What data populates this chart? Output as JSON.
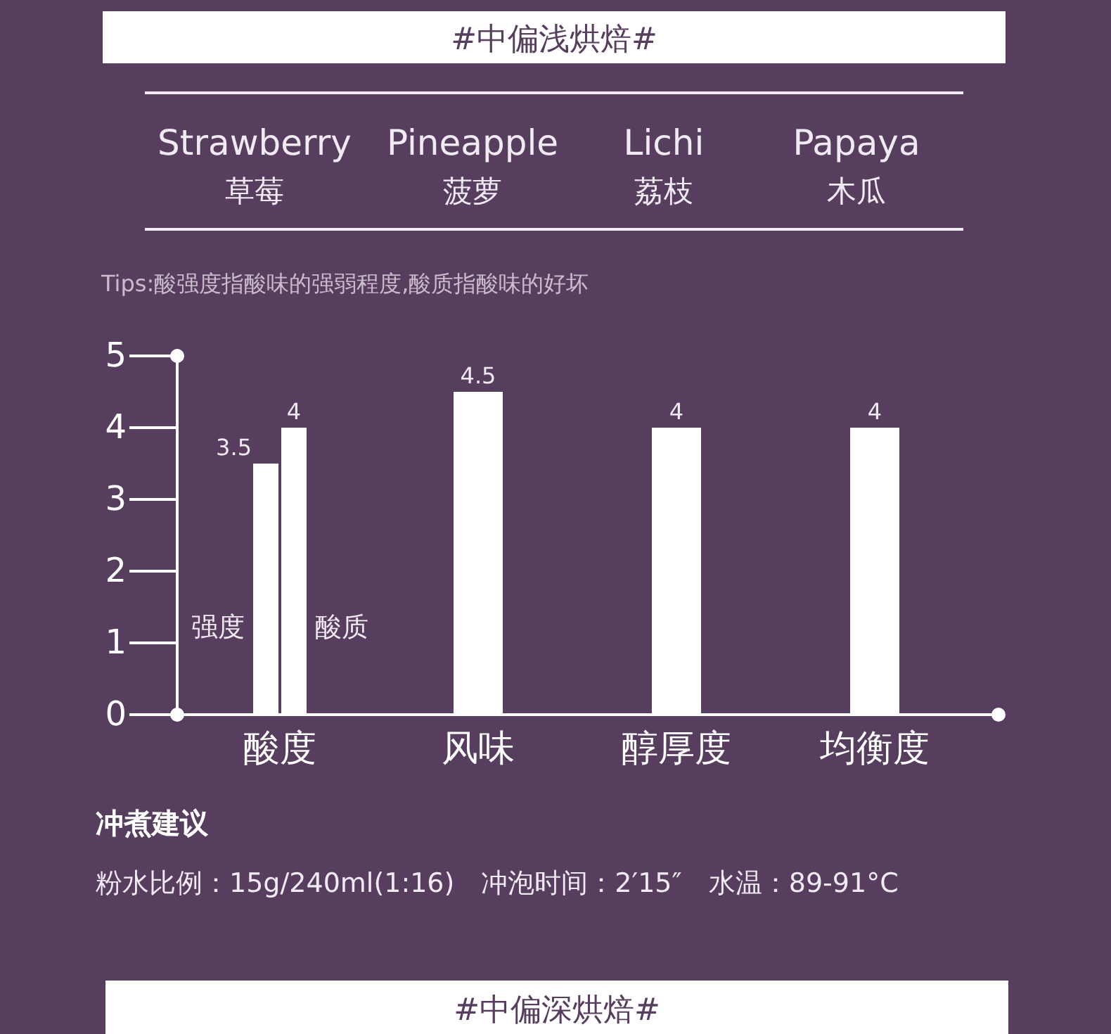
{
  "chart_data": {
    "type": "bar",
    "title": "#中偏浅烘焙#",
    "subtitle": "Tips:酸强度指酸味的强弱程度,酸质指酸味的好坏",
    "categories": [
      "酸度",
      "风味",
      "醇厚度",
      "均衡度"
    ],
    "series": [
      {
        "name": "强度",
        "color": "#ffffff",
        "values": [
          3.5,
          null,
          null,
          null
        ]
      },
      {
        "name": "酸质",
        "color": "#ffffff",
        "values": [
          4,
          null,
          null,
          null
        ]
      },
      {
        "color": "#ffffff",
        "values": [
          null,
          4.5,
          4,
          4
        ]
      }
    ],
    "ylim": [
      0,
      5
    ],
    "yticks": [
      0,
      1,
      2,
      3,
      4,
      5
    ],
    "grid": false,
    "legend": "left",
    "data_labels": true,
    "annotations": [
      "Strawberry",
      "草莓",
      "Pineapple",
      "菠萝",
      "Lichi",
      "荔枝",
      "Papaya",
      "木瓜",
      "冲煮建议",
      "粉水比例：15g/240ml(1:16)　冲泡时间：2′15″　水温：89-91°C",
      "#中偏深烘焙#"
    ]
  }
}
